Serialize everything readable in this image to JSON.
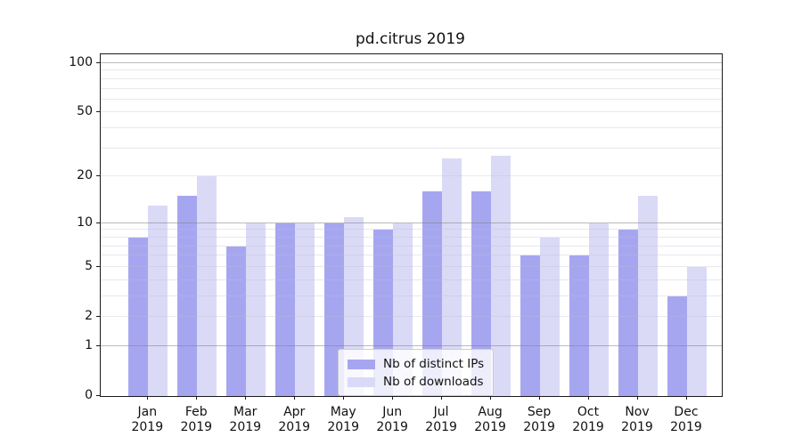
{
  "chart_data": {
    "type": "bar",
    "title": "pd.citrus 2019",
    "categories": [
      "Jan",
      "Feb",
      "Mar",
      "Apr",
      "May",
      "Jun",
      "Jul",
      "Aug",
      "Sep",
      "Oct",
      "Nov",
      "Dec"
    ],
    "category_year": "2019",
    "series": [
      {
        "name": "Nb of distinct IPs",
        "color": "#a6a6f0",
        "values": [
          8,
          15,
          7,
          10,
          10,
          9,
          16,
          16,
          6,
          6,
          9,
          3
        ]
      },
      {
        "name": "Nb of downloads",
        "color": "#dadaf7",
        "values": [
          13,
          20,
          10,
          10,
          11,
          10,
          26,
          27,
          8,
          10,
          15,
          5
        ]
      }
    ],
    "yscale": "log1p",
    "ylim": [
      0,
      113
    ],
    "yticks": [
      0,
      1,
      2,
      5,
      10,
      20,
      50,
      100
    ],
    "major_gridlines": [
      1,
      10,
      100
    ],
    "minor_gridlines": [
      2,
      3,
      4,
      5,
      6,
      7,
      8,
      9,
      20,
      30,
      40,
      50,
      60,
      70,
      80,
      90
    ],
    "grid": "both",
    "legend_position": "lower center",
    "colors": {
      "major_grid": "#b0b0b0",
      "minor_grid": "#e7e7ee",
      "spine": "#1a1a1a",
      "text": "#111111"
    }
  }
}
